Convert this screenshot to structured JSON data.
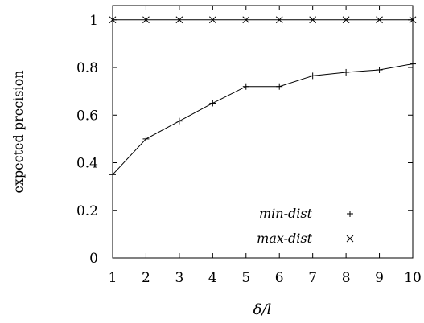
{
  "chart_data": {
    "type": "line",
    "xlabel": "δ/l",
    "ylabel": "expected precision",
    "x": [
      1,
      2,
      3,
      4,
      5,
      6,
      7,
      8,
      9,
      10
    ],
    "xlim": [
      1,
      10
    ],
    "ylim": [
      0,
      1
    ],
    "xticks": [
      "1",
      "2",
      "3",
      "4",
      "5",
      "6",
      "7",
      "8",
      "9",
      "10"
    ],
    "yticks": [
      "0",
      "0.2",
      "0.4",
      "0.6",
      "0.8",
      "1"
    ],
    "ytick_values": [
      0,
      0.2,
      0.4,
      0.6,
      0.8,
      1
    ],
    "grid": false,
    "legend_position": "bottom-right",
    "series": [
      {
        "name": "min-dist",
        "marker": "plus",
        "values": [
          0.35,
          0.5,
          0.575,
          0.65,
          0.72,
          0.72,
          0.765,
          0.78,
          0.79,
          0.815
        ]
      },
      {
        "name": "max-dist",
        "marker": "cross",
        "values": [
          1,
          1,
          1,
          1,
          1,
          1,
          1,
          1,
          1,
          1
        ]
      }
    ]
  }
}
